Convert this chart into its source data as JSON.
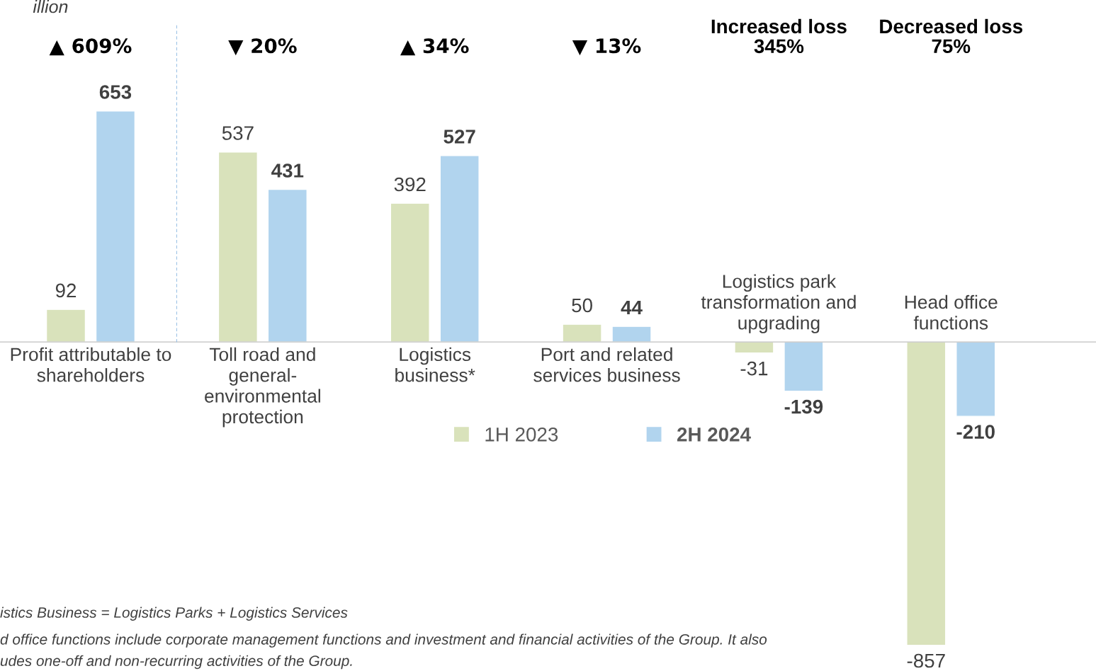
{
  "chart_data": {
    "type": "bar",
    "title": "illion",
    "categories": [
      "Profit attributable to\nshareholders",
      "Toll road and\ngeneral-\nenvironmental\nprotection",
      "Logistics\nbusiness*",
      "Port and related\nservices business",
      "Logistics park\ntransformation and\nupgrading",
      "Head office\nfunctions"
    ],
    "series": [
      {
        "name": "1H 2023",
        "color": "#d9e2bb",
        "values": [
          92,
          537,
          392,
          50,
          -31,
          -857
        ]
      },
      {
        "name": "2H 2024",
        "color": "#b1d4ee",
        "values": [
          653,
          431,
          527,
          44,
          -139,
          -210
        ]
      }
    ],
    "data_labels": true,
    "legend": "center",
    "annotations": [
      "▲ 609%",
      "▼ 20%",
      "▲ 34%",
      "▼ 13%",
      "Increased loss\n345%",
      "Decreased loss\n75%",
      "istics Business = Logistics Parks + Logistics Services",
      "d office functions include corporate management functions and investment and financial activities of the Group. It also",
      "udes one-off and non-recurring activities of the Group."
    ]
  }
}
